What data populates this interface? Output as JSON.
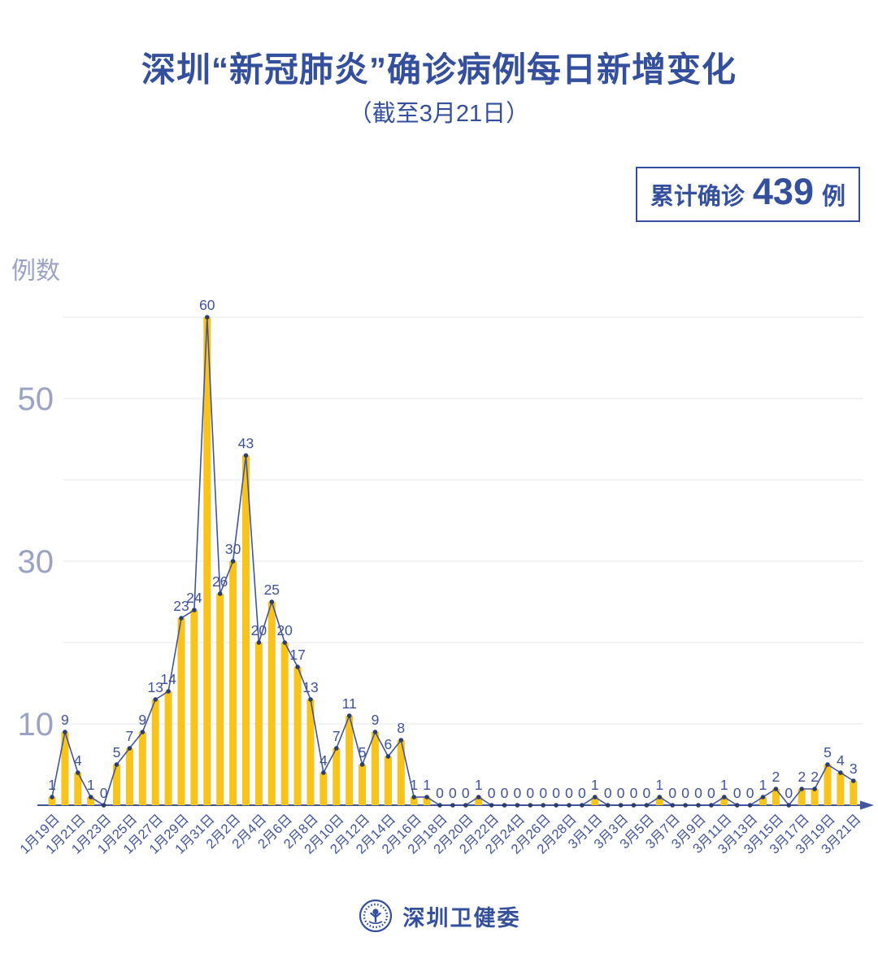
{
  "accent_color": "#34509D",
  "header": {
    "title": "深圳“新冠肺炎”确诊病例每日新增变化",
    "subtitle": "（截至3月21日）"
  },
  "badge": {
    "prefix": "累计确诊",
    "count": "439",
    "suffix": "例"
  },
  "chart_data": {
    "type": "bar",
    "overlay": "line",
    "title": "深圳“新冠肺炎”确诊病例每日新增变化",
    "xlabel": "",
    "ylabel": "例数",
    "ylim": [
      0,
      62
    ],
    "yticks": [
      10,
      30,
      50
    ],
    "grid": true,
    "x_label_every": 2,
    "categories": [
      "1月19日",
      "1月20日",
      "1月21日",
      "1月22日",
      "1月23日",
      "1月24日",
      "1月25日",
      "1月26日",
      "1月27日",
      "1月28日",
      "1月29日",
      "1月30日",
      "1月31日",
      "2月1日",
      "2月2日",
      "2月3日",
      "2月4日",
      "2月5日",
      "2月6日",
      "2月7日",
      "2月8日",
      "2月9日",
      "2月10日",
      "2月11日",
      "2月12日",
      "2月13日",
      "2月14日",
      "2月15日",
      "2月16日",
      "2月17日",
      "2月18日",
      "2月19日",
      "2月20日",
      "2月21日",
      "2月22日",
      "2月23日",
      "2月24日",
      "2月25日",
      "2月26日",
      "2月27日",
      "2月28日",
      "2月29日",
      "3月1日",
      "3月2日",
      "3月3日",
      "3月4日",
      "3月5日",
      "3月6日",
      "3月7日",
      "3月8日",
      "3月9日",
      "3月10日",
      "3月11日",
      "3月12日",
      "3月13日",
      "3月14日",
      "3月15日",
      "3月16日",
      "3月17日",
      "3月18日",
      "3月19日",
      "3月20日",
      "3月21日"
    ],
    "values": [
      1,
      9,
      4,
      1,
      0,
      5,
      7,
      9,
      13,
      14,
      23,
      24,
      60,
      26,
      30,
      43,
      20,
      25,
      20,
      17,
      13,
      4,
      7,
      11,
      5,
      9,
      6,
      8,
      1,
      1,
      0,
      0,
      0,
      1,
      0,
      0,
      0,
      0,
      0,
      0,
      0,
      0,
      1,
      0,
      0,
      0,
      0,
      1,
      0,
      0,
      0,
      0,
      1,
      0,
      0,
      1,
      2,
      0,
      2,
      2,
      5,
      4,
      3
    ],
    "colors": {
      "bar": "#F8C31A",
      "line": "#42549C",
      "dot": "#2C3D6F",
      "value_label": "#40529B",
      "axis_tick": "#9BA3C4",
      "grid": "#EBEDF3"
    }
  },
  "footer": {
    "brand": "深圳卫健委",
    "logo_icon": "shenzhen-health-commission-logo"
  }
}
